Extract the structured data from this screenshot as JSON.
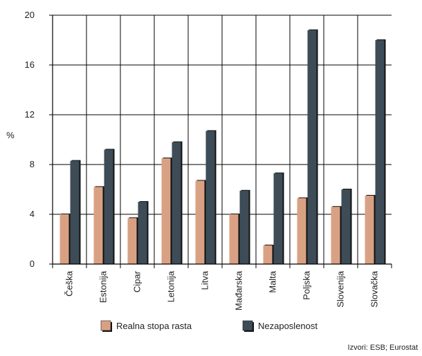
{
  "chart_data": {
    "type": "bar",
    "title": "",
    "xlabel": "",
    "ylabel": "%",
    "ylim": [
      0,
      20
    ],
    "yticks": [
      0,
      4,
      8,
      12,
      16,
      20
    ],
    "grid": true,
    "legend_position": "bottom",
    "categories": [
      "Češka",
      "Estonija",
      "Cipar",
      "Letonija",
      "Litva",
      "Mađarska",
      "Malta",
      "Poljska",
      "Slovenija",
      "Slovačka"
    ],
    "series": [
      {
        "name": "Realna stopa rasta",
        "color": "#d9a184",
        "values": [
          4.0,
          6.2,
          3.7,
          8.5,
          6.7,
          4.0,
          1.5,
          5.3,
          4.6,
          5.5
        ]
      },
      {
        "name": "Nezaposlenost",
        "color": "#3d4c56",
        "values": [
          8.3,
          9.2,
          5.0,
          9.8,
          10.7,
          5.9,
          7.3,
          18.8,
          6.0,
          18.0
        ]
      }
    ],
    "source_note": "Izvori: ESB; Eurostat"
  }
}
